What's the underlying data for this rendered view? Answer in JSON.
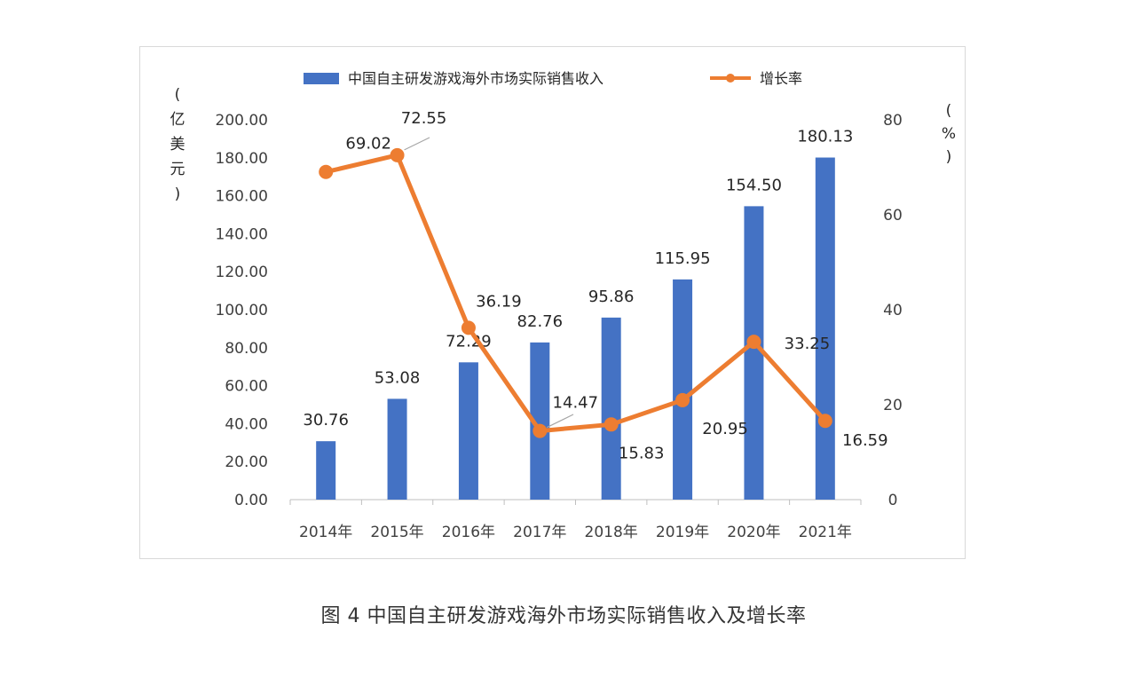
{
  "colors": {
    "bar": "#4472C4",
    "line": "#ED7D31",
    "axis": "#bfbfbf",
    "text": "#262626"
  },
  "chart_data": {
    "type": "bar",
    "categories": [
      "2014年",
      "2015年",
      "2016年",
      "2017年",
      "2018年",
      "2019年",
      "2020年",
      "2021年"
    ],
    "series": [
      {
        "name": "中国自主研发游戏海外市场实际销售收入",
        "type": "bar",
        "axis": "left",
        "values": [
          30.76,
          53.08,
          72.29,
          82.76,
          95.86,
          115.95,
          154.5,
          180.13
        ],
        "labels": [
          "30.76",
          "53.08",
          "72.29",
          "82.76",
          "95.86",
          "115.95",
          "154.50",
          "180.13"
        ]
      },
      {
        "name": "增长率",
        "type": "line",
        "axis": "right",
        "values": [
          69.02,
          72.55,
          36.19,
          14.47,
          15.83,
          20.95,
          33.25,
          16.59
        ],
        "labels": [
          "69.02",
          "72.55",
          "36.19",
          "14.47",
          "15.83",
          "20.95",
          "33.25",
          "16.59"
        ]
      }
    ],
    "left_axis": {
      "min": 0,
      "max": 200,
      "step": 20,
      "ticks": [
        "0.00",
        "20.00",
        "40.00",
        "60.00",
        "80.00",
        "100.00",
        "120.00",
        "140.00",
        "160.00",
        "180.00",
        "200.00"
      ],
      "unit_chars": [
        "(",
        "亿",
        "美",
        "元",
        ")"
      ]
    },
    "right_axis": {
      "min": 0,
      "max": 80,
      "step": 20,
      "ticks": [
        "0",
        "20",
        "40",
        "60",
        "80"
      ],
      "unit_chars": [
        "(",
        "%",
        ")"
      ]
    },
    "legend_position": "top",
    "grid": false
  },
  "caption": "图 4 中国自主研发游戏海外市场实际销售收入及增长率"
}
